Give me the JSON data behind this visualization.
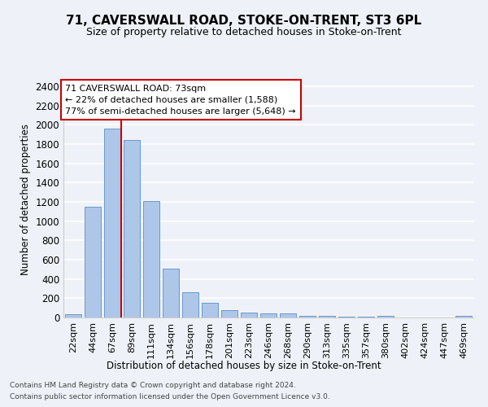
{
  "title1": "71, CAVERSWALL ROAD, STOKE-ON-TRENT, ST3 6PL",
  "title2": "Size of property relative to detached houses in Stoke-on-Trent",
  "xlabel": "Distribution of detached houses by size in Stoke-on-Trent",
  "ylabel": "Number of detached properties",
  "categories": [
    "22sqm",
    "44sqm",
    "67sqm",
    "89sqm",
    "111sqm",
    "134sqm",
    "156sqm",
    "178sqm",
    "201sqm",
    "223sqm",
    "246sqm",
    "268sqm",
    "290sqm",
    "313sqm",
    "335sqm",
    "357sqm",
    "380sqm",
    "402sqm",
    "424sqm",
    "447sqm",
    "469sqm"
  ],
  "values": [
    30,
    1150,
    1960,
    1840,
    1210,
    510,
    265,
    155,
    80,
    50,
    45,
    40,
    20,
    18,
    12,
    5,
    20,
    0,
    0,
    0,
    20
  ],
  "bar_color": "#aec6e8",
  "bar_edge_color": "#6699cc",
  "annotation_title": "71 CAVERSWALL ROAD: 73sqm",
  "annotation_line1": "← 22% of detached houses are smaller (1,588)",
  "annotation_line2": "77% of semi-detached houses are larger (5,648) →",
  "annotation_box_color": "#ffffff",
  "annotation_box_edge": "#cc0000",
  "vline_color": "#cc0000",
  "footer1": "Contains HM Land Registry data © Crown copyright and database right 2024.",
  "footer2": "Contains public sector information licensed under the Open Government Licence v3.0.",
  "ylim": [
    0,
    2450
  ],
  "yticks": [
    0,
    200,
    400,
    600,
    800,
    1000,
    1200,
    1400,
    1600,
    1800,
    2000,
    2200,
    2400
  ],
  "bg_color": "#eef2f8",
  "grid_color": "#ffffff",
  "figsize": [
    6.0,
    5.0
  ],
  "dpi": 100,
  "vline_bin": 2.45
}
